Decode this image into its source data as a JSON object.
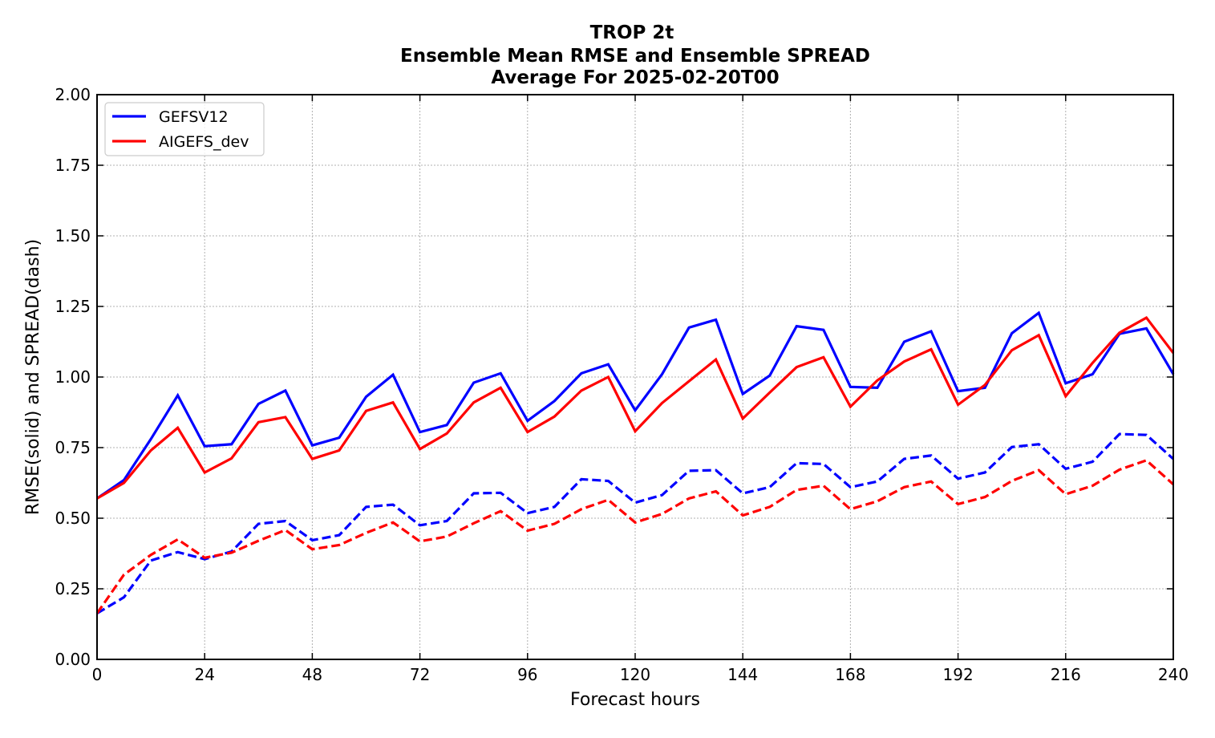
{
  "chart_data": {
    "type": "line",
    "title_lines": [
      "TROP 2t",
      "Ensemble Mean RMSE and Ensemble SPREAD",
      "Average For 2025-02-20T00"
    ],
    "xlabel": "Forecast hours",
    "ylabel": "RMSE(solid) and SPREAD(dash)",
    "xlim": [
      0,
      240
    ],
    "ylim": [
      0,
      2.0
    ],
    "xticks": [
      0,
      24,
      48,
      72,
      96,
      120,
      144,
      168,
      192,
      216,
      240
    ],
    "xtick_labels": [
      "0",
      "24",
      "48",
      "72",
      "96",
      "120",
      "144",
      "168",
      "192",
      "216",
      "240"
    ],
    "yticks": [
      0,
      0.25,
      0.5,
      0.75,
      1.0,
      1.25,
      1.5,
      1.75,
      2.0
    ],
    "ytick_labels": [
      "0.00",
      "0.25",
      "0.50",
      "0.75",
      "1.00",
      "1.25",
      "1.50",
      "1.75",
      "2.00"
    ],
    "grid": true,
    "legend_placement": "top-left",
    "x": [
      0,
      6,
      12,
      18,
      24,
      30,
      36,
      42,
      48,
      54,
      60,
      66,
      72,
      78,
      84,
      90,
      96,
      102,
      108,
      114,
      120,
      126,
      132,
      138,
      144,
      150,
      156,
      162,
      168,
      174,
      180,
      186,
      192,
      198,
      204,
      210,
      216,
      222,
      228,
      234,
      240
    ],
    "series": [
      {
        "name": "GEFSV12",
        "metric": "RMSE",
        "style": "solid",
        "color": "#0000ff",
        "values": [
          0.57,
          0.635,
          0.78,
          0.935,
          0.755,
          0.762,
          0.905,
          0.952,
          0.758,
          0.785,
          0.93,
          1.008,
          0.805,
          0.83,
          0.98,
          1.013,
          0.845,
          0.915,
          1.013,
          1.045,
          0.882,
          1.01,
          1.175,
          1.203,
          0.94,
          1.005,
          1.18,
          1.167,
          0.965,
          0.962,
          1.125,
          1.162,
          0.95,
          0.962,
          1.155,
          1.227,
          0.978,
          1.01,
          1.153,
          1.172,
          1.01
        ]
      },
      {
        "name": "AIGEFS_dev",
        "metric": "RMSE",
        "style": "solid",
        "color": "#ff0000",
        "values": [
          0.57,
          0.625,
          0.74,
          0.82,
          0.662,
          0.712,
          0.84,
          0.858,
          0.71,
          0.74,
          0.88,
          0.91,
          0.745,
          0.8,
          0.91,
          0.962,
          0.805,
          0.86,
          0.952,
          1.0,
          0.808,
          0.908,
          0.985,
          1.062,
          0.853,
          0.945,
          1.035,
          1.07,
          0.895,
          0.988,
          1.055,
          1.098,
          0.902,
          0.972,
          1.095,
          1.148,
          0.932,
          1.05,
          1.157,
          1.21,
          1.085
        ]
      },
      {
        "name": "GEFSV12",
        "metric": "SPREAD",
        "style": "dash",
        "color": "#0000ff",
        "values": [
          0.163,
          0.22,
          0.35,
          0.38,
          0.355,
          0.382,
          0.48,
          0.49,
          0.422,
          0.44,
          0.54,
          0.548,
          0.475,
          0.49,
          0.588,
          0.59,
          0.518,
          0.54,
          0.638,
          0.632,
          0.555,
          0.582,
          0.668,
          0.67,
          0.588,
          0.61,
          0.695,
          0.692,
          0.61,
          0.63,
          0.71,
          0.722,
          0.64,
          0.662,
          0.752,
          0.762,
          0.675,
          0.7,
          0.798,
          0.795,
          0.71
        ]
      },
      {
        "name": "AIGEFS_dev",
        "metric": "SPREAD",
        "style": "dash",
        "color": "#ff0000",
        "values": [
          0.163,
          0.3,
          0.37,
          0.425,
          0.36,
          0.378,
          0.42,
          0.458,
          0.39,
          0.405,
          0.448,
          0.485,
          0.418,
          0.435,
          0.482,
          0.525,
          0.456,
          0.48,
          0.532,
          0.565,
          0.485,
          0.515,
          0.57,
          0.595,
          0.51,
          0.54,
          0.6,
          0.615,
          0.532,
          0.56,
          0.61,
          0.63,
          0.55,
          0.575,
          0.632,
          0.67,
          0.585,
          0.615,
          0.672,
          0.705,
          0.62
        ]
      }
    ],
    "legend": [
      {
        "label": "GEFSV12",
        "color": "#0000ff"
      },
      {
        "label": "AIGEFS_dev",
        "color": "#ff0000"
      }
    ]
  }
}
